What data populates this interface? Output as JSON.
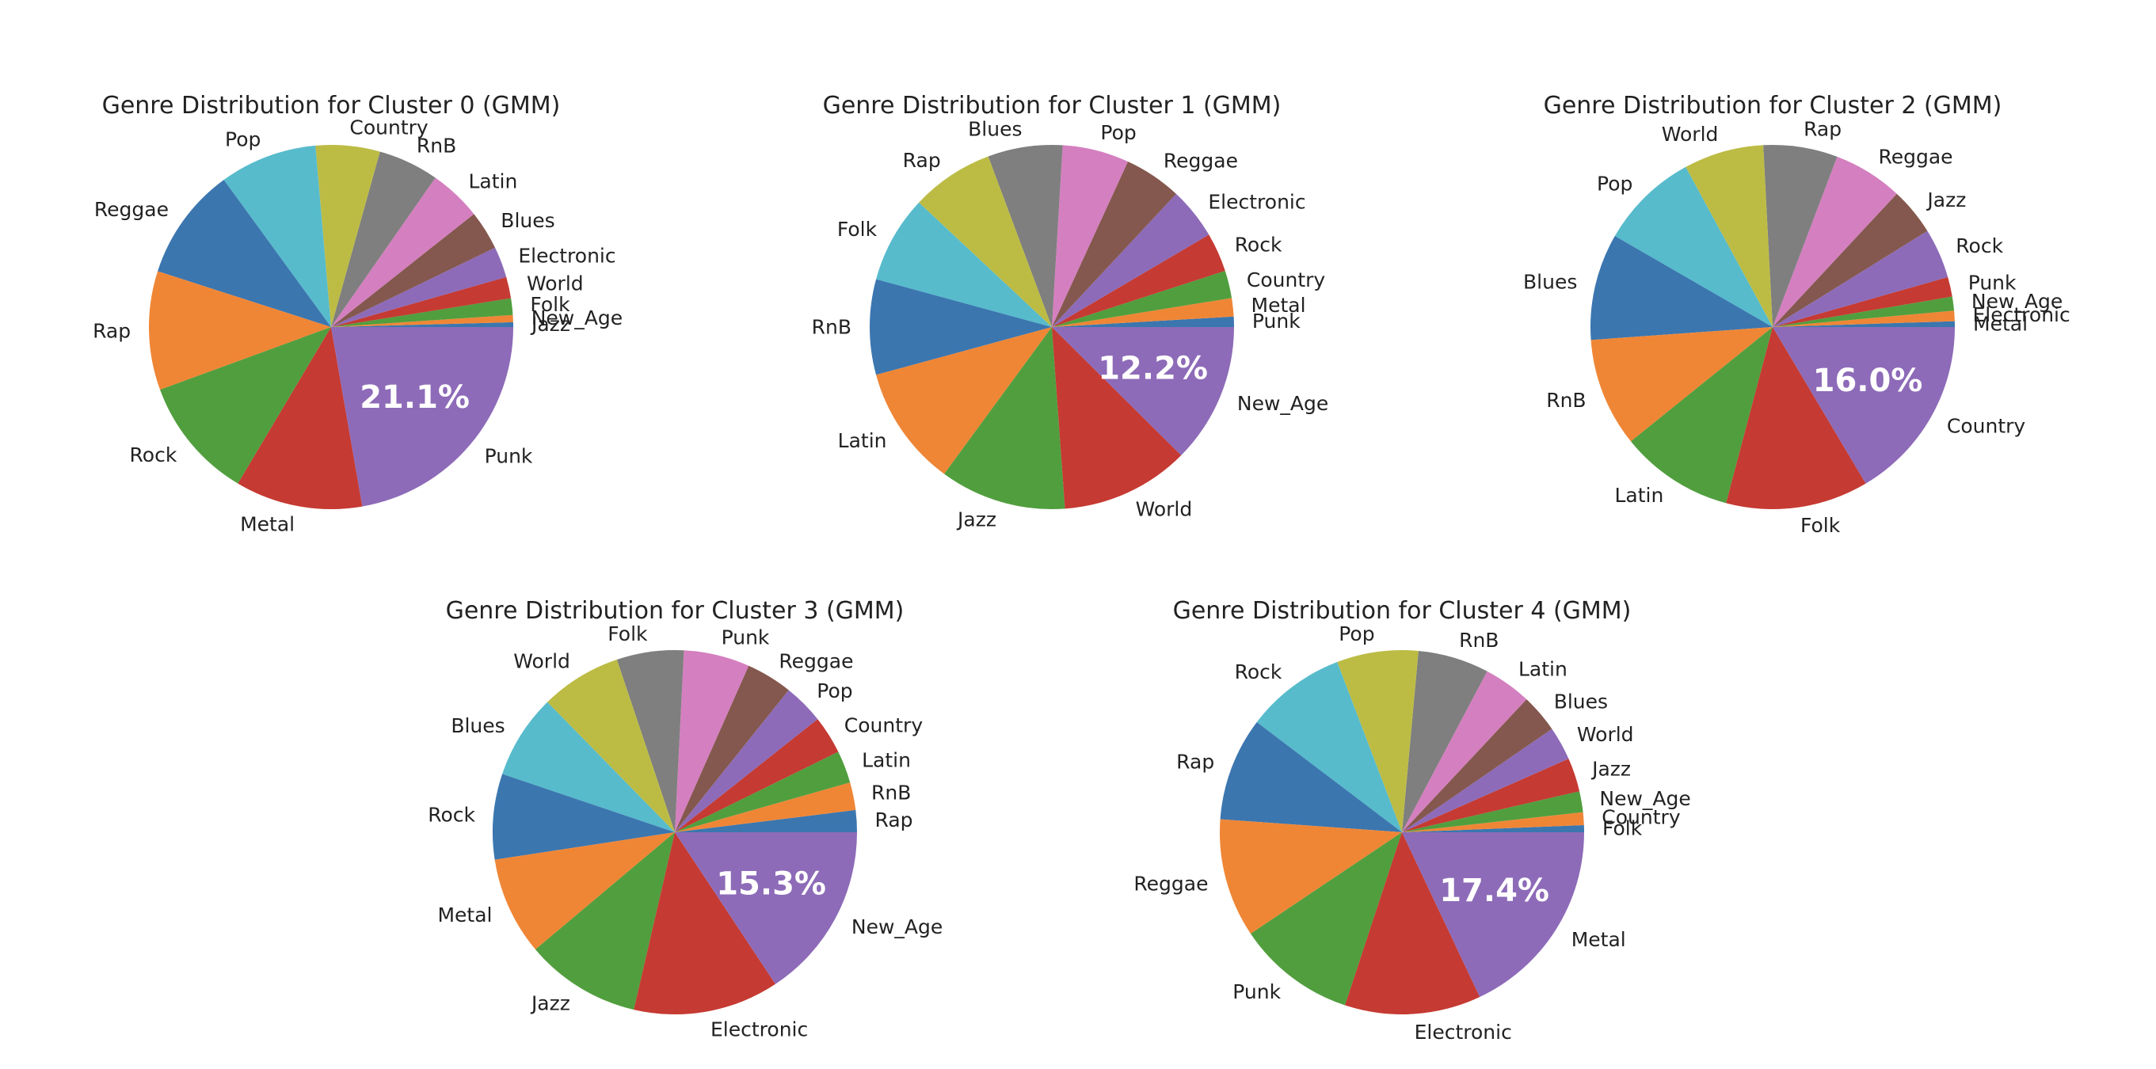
{
  "colors": [
    "#3b76af",
    "#ef8636",
    "#519e3e",
    "#c53a32",
    "#8d6bb8",
    "#84584e",
    "#d47fbf",
    "#7f7f7f",
    "#bcbc45",
    "#57bbcc"
  ],
  "chart_data": [
    {
      "type": "pie",
      "title": "Genre Distribution for Cluster 0 (GMM)",
      "labels": [
        "Jazz",
        "New_Age",
        "Folk",
        "World",
        "Electronic",
        "Blues",
        "Latin",
        "RnB",
        "Country",
        "Pop",
        "Reggae",
        "Rap",
        "Rock",
        "Metal",
        "Punk"
      ],
      "values": [
        0.4,
        0.6,
        1.4,
        1.8,
        2.6,
        3.3,
        4.4,
        5.1,
        5.4,
        8.2,
        9.5,
        10.0,
        10.3,
        10.7,
        21.1
      ],
      "highlight_label": "21.1%"
    },
    {
      "type": "pie",
      "title": "Genre Distribution for Cluster 1 (GMM)",
      "labels": [
        "Punk",
        "Metal",
        "Country",
        "Rock",
        "Electronic",
        "Reggae",
        "Pop",
        "Blues",
        "Rap",
        "Folk",
        "RnB",
        "Latin",
        "Jazz",
        "World",
        "New_Age"
      ],
      "values": [
        0.9,
        1.6,
        2.4,
        3.4,
        4.5,
        5.0,
        5.8,
        6.5,
        7.2,
        7.6,
        8.3,
        10.5,
        11.0,
        11.2,
        12.2
      ],
      "highlight_label": "12.2%"
    },
    {
      "type": "pie",
      "title": "Genre Distribution for Cluster 2 (GMM)",
      "labels": [
        "Metal",
        "Electronic",
        "New_Age",
        "Punk",
        "Rock",
        "Jazz",
        "Reggae",
        "Rap",
        "World",
        "Pop",
        "Blues",
        "RnB",
        "Latin",
        "Folk",
        "Country"
      ],
      "values": [
        0.5,
        0.9,
        1.2,
        1.7,
        4.3,
        4.1,
        6.0,
        6.4,
        6.9,
        8.5,
        9.2,
        9.4,
        9.8,
        12.3,
        16.0
      ],
      "highlight_label": "16.0%"
    },
    {
      "type": "pie",
      "title": "Genre Distribution for Cluster 3 (GMM)",
      "labels": [
        "Rap",
        "RnB",
        "Latin",
        "Country",
        "Pop",
        "Reggae",
        "Punk",
        "Folk",
        "World",
        "Blues",
        "Rock",
        "Metal",
        "Jazz",
        "Electronic",
        "New_Age"
      ],
      "values": [
        1.9,
        2.4,
        2.8,
        3.3,
        3.5,
        4.0,
        5.7,
        5.8,
        7.0,
        7.3,
        7.4,
        8.5,
        10.0,
        12.6,
        15.3
      ],
      "highlight_label": "15.3%"
    },
    {
      "type": "pie",
      "title": "Genre Distribution for Cluster 4 (GMM)",
      "labels": [
        "Folk",
        "Country",
        "New_Age",
        "Jazz",
        "World",
        "Blues",
        "Latin",
        "RnB",
        "Pop",
        "Rock",
        "Rap",
        "Reggae",
        "Punk",
        "Electronic",
        "Metal"
      ],
      "values": [
        0.6,
        1.1,
        1.8,
        2.9,
        2.9,
        3.3,
        4.1,
        6.1,
        7.0,
        8.6,
        8.9,
        10.2,
        10.2,
        11.7,
        17.4
      ],
      "highlight_label": "17.4%"
    }
  ]
}
